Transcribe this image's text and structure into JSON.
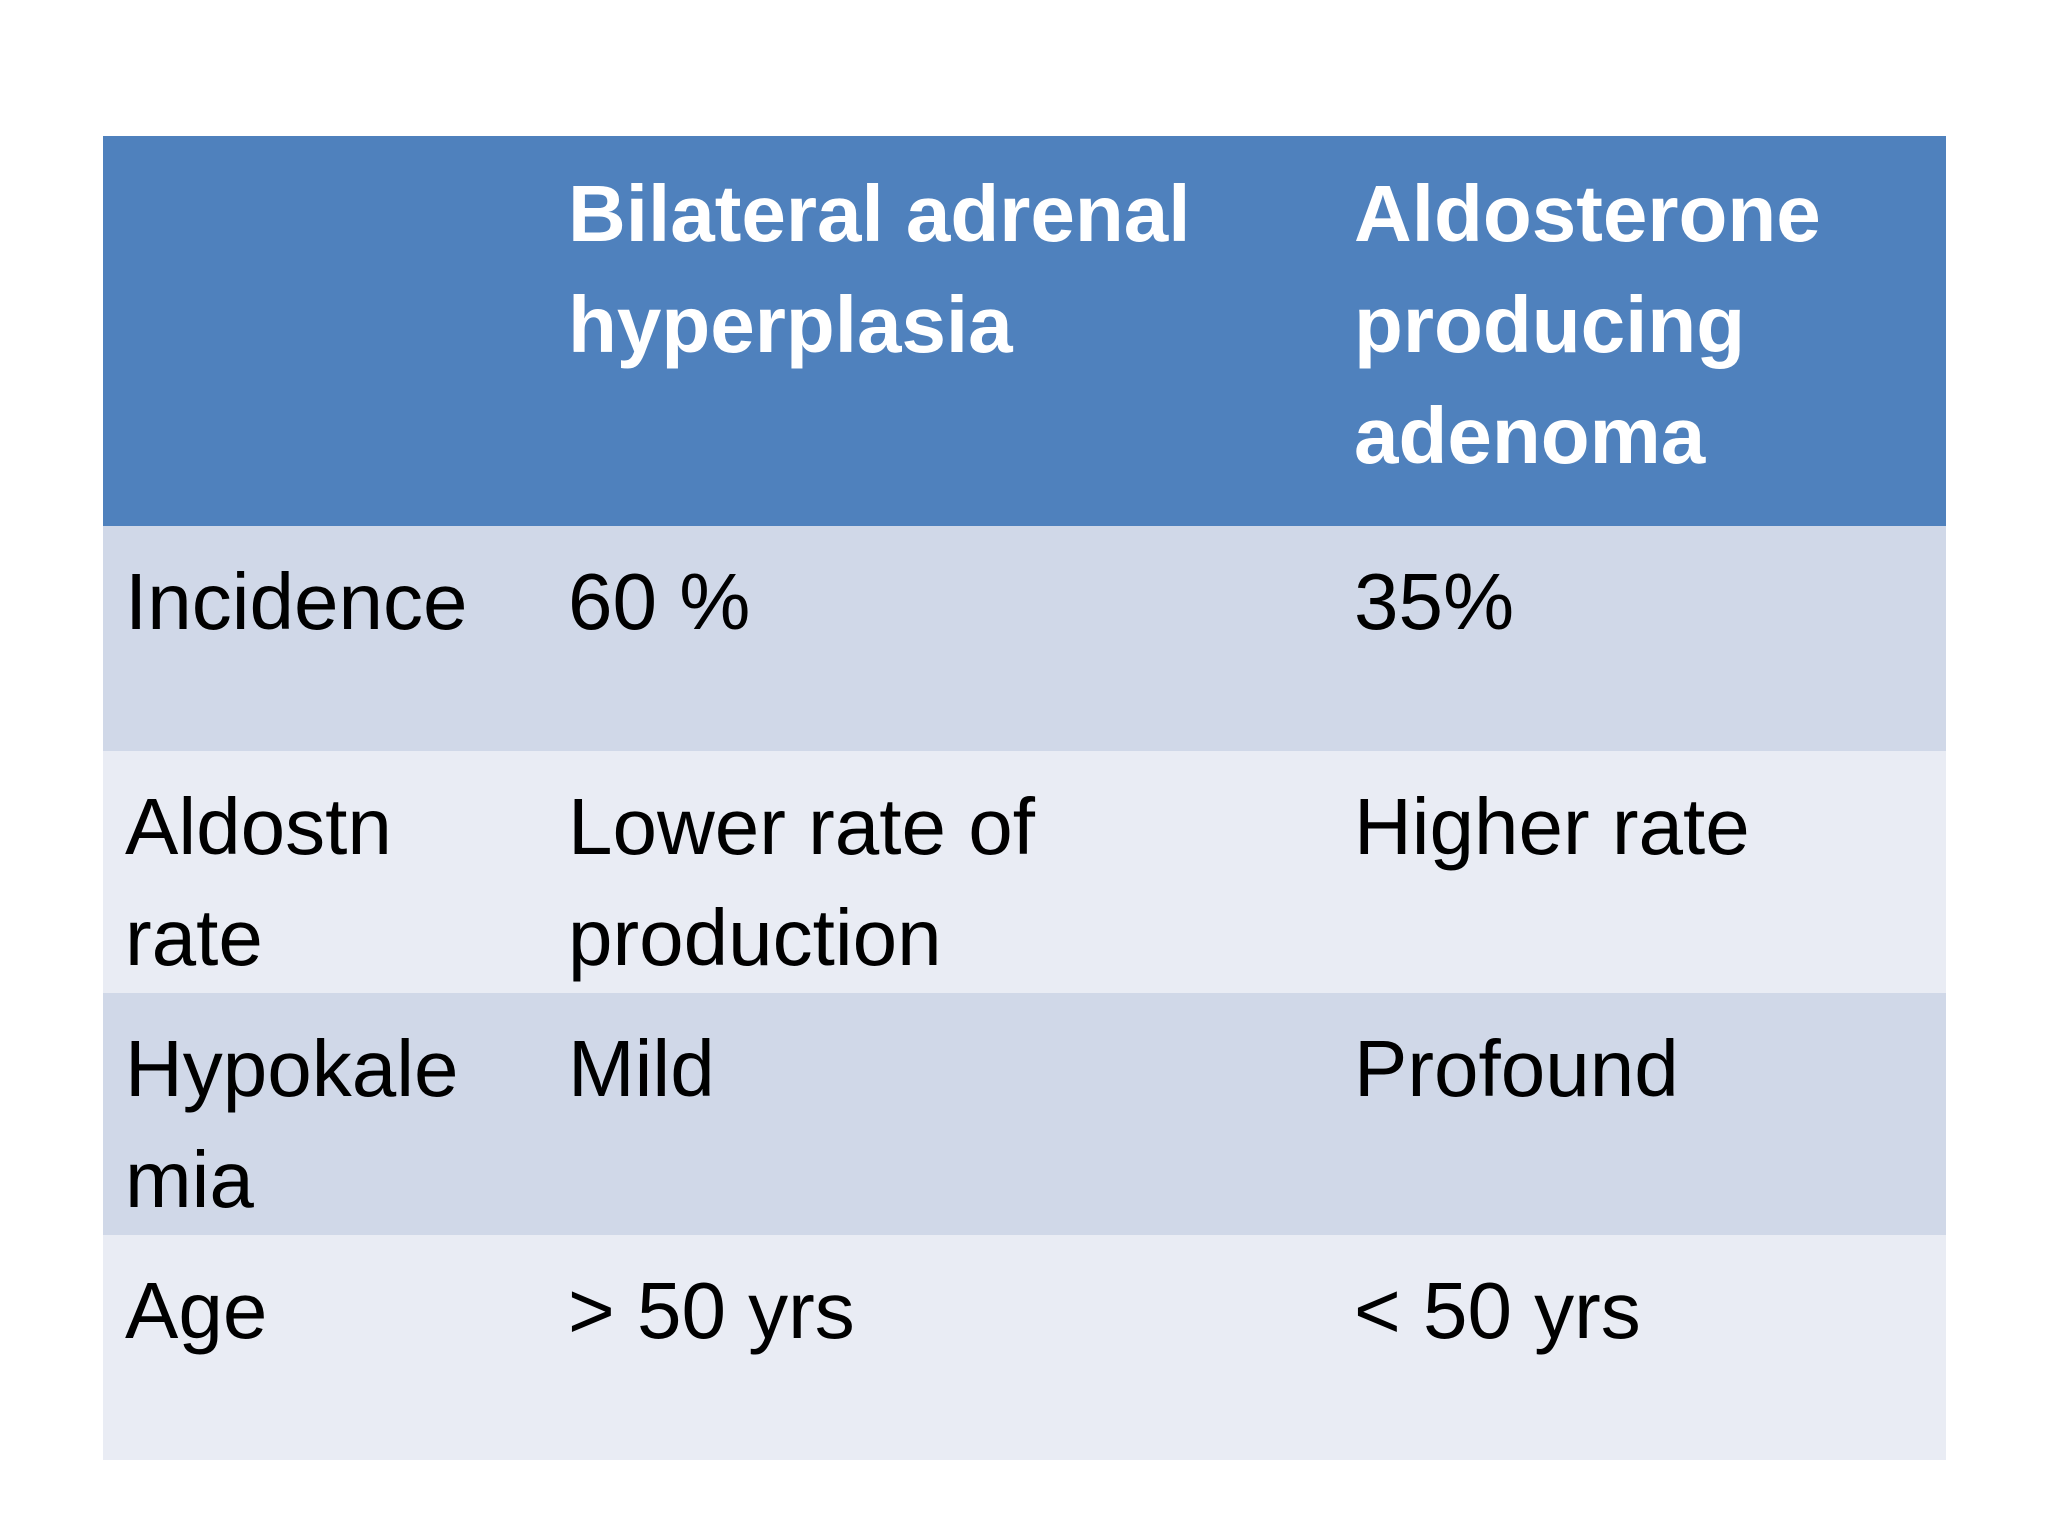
{
  "table": {
    "header": {
      "col1": "",
      "col2": "Bilateral adrenal hyperplasia",
      "col3": "Aldosterone producing adenoma"
    },
    "rows": [
      {
        "label": "Incidence",
        "bilateral": "60 %",
        "adenoma": "35%"
      },
      {
        "label": "Aldostn rate",
        "bilateral": "Lower rate of production",
        "adenoma": "Higher rate"
      },
      {
        "label": "Hypokale mia",
        "bilateral": "Mild",
        "adenoma": "Profound"
      },
      {
        "label": "Age",
        "bilateral": "> 50 yrs",
        "adenoma": "< 50 yrs"
      }
    ],
    "colors": {
      "header_bg": "#4f81bd",
      "row_odd_bg": "#d0d8e8",
      "row_even_bg": "#e9ecf4"
    }
  }
}
